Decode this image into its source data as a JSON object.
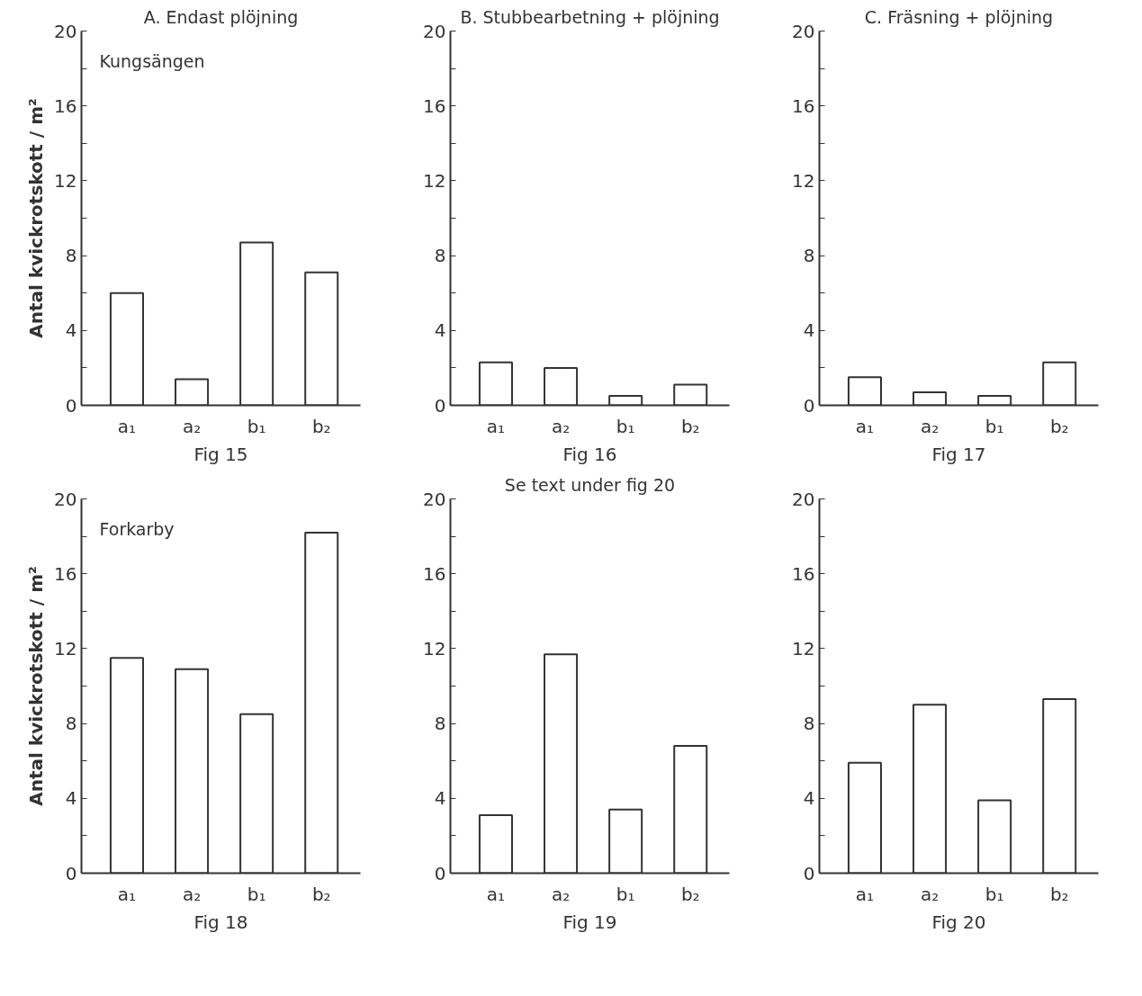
{
  "chart_data": [
    {
      "type": "bar",
      "title": "A. Endast plöjning",
      "xlabel": "Fig 15",
      "ylabel": "Antal kvickrotskott / m²",
      "annotations": [
        "Kungsängen"
      ],
      "categories": [
        "a₁",
        "a₂",
        "b₁",
        "b₂"
      ],
      "values": [
        6.0,
        1.4,
        8.7,
        7.1
      ],
      "color": "#ffffff",
      "ylim": [
        0,
        20
      ],
      "yticks": [
        0,
        {
          "value": 2,
          "label": null
        },
        4,
        {
          "value": 6,
          "label": null
        },
        8,
        {
          "value": 10,
          "label": null
        },
        12,
        {
          "value": 14,
          "label": null
        },
        16,
        {
          "value": 18,
          "label": null
        },
        20
      ],
      "grid": false
    },
    {
      "type": "bar",
      "title": "B. Stubbearbetning + plöjning",
      "xlabel": "Fig 16",
      "categories": [
        "a₁",
        "a₂",
        "b₁",
        "b₂"
      ],
      "values": [
        2.3,
        2.0,
        0.5,
        1.1
      ],
      "color": "#ffffff",
      "ylim": [
        0,
        20
      ],
      "yticks": [
        0,
        {
          "value": 2,
          "label": null
        },
        4,
        {
          "value": 6,
          "label": null
        },
        8,
        {
          "value": 10,
          "label": null
        },
        12,
        {
          "value": 14,
          "label": null
        },
        16,
        {
          "value": 18,
          "label": null
        },
        20
      ],
      "grid": false
    },
    {
      "type": "bar",
      "title": "C. Fräsning + plöjning",
      "xlabel": "Fig 17",
      "categories": [
        "a₁",
        "a₂",
        "b₁",
        "b₂"
      ],
      "values": [
        1.5,
        0.7,
        0.5,
        2.3
      ],
      "color": "#ffffff",
      "ylim": [
        0,
        20
      ],
      "yticks": [
        0,
        {
          "value": 2,
          "label": null
        },
        4,
        {
          "value": 6,
          "label": null
        },
        8,
        {
          "value": 10,
          "label": null
        },
        12,
        {
          "value": 14,
          "label": null
        },
        16,
        {
          "value": 18,
          "label": null
        },
        20
      ],
      "grid": false
    },
    {
      "type": "bar",
      "xlabel": "Fig 18",
      "ylabel": "Antal kvickrotskott / m²",
      "annotations": [
        "Forkarby"
      ],
      "categories": [
        "a₁",
        "a₂",
        "b₁",
        "b₂"
      ],
      "values": [
        11.5,
        10.9,
        8.5,
        18.2
      ],
      "color": "#ffffff",
      "ylim": [
        0,
        20
      ],
      "yticks": [
        0,
        {
          "value": 2,
          "label": null
        },
        4,
        {
          "value": 6,
          "label": null
        },
        8,
        {
          "value": 10,
          "label": null
        },
        12,
        {
          "value": 14,
          "label": null
        },
        16,
        {
          "value": 18,
          "label": null
        },
        20
      ],
      "grid": false
    },
    {
      "type": "bar",
      "title": "Se text under fig 20",
      "xlabel": "Fig 19",
      "categories": [
        "a₁",
        "a₂",
        "b₁",
        "b₂"
      ],
      "values": [
        3.1,
        11.7,
        3.4,
        6.8
      ],
      "color": "#ffffff",
      "ylim": [
        0,
        20
      ],
      "yticks": [
        0,
        {
          "value": 2,
          "label": null
        },
        4,
        {
          "value": 6,
          "label": null
        },
        8,
        {
          "value": 10,
          "label": null
        },
        12,
        {
          "value": 14,
          "label": null
        },
        16,
        {
          "value": 18,
          "label": null
        },
        20
      ],
      "grid": false
    },
    {
      "type": "bar",
      "xlabel": "Fig 20",
      "categories": [
        "a₁",
        "a₂",
        "b₁",
        "b₂"
      ],
      "values": [
        5.9,
        9.0,
        3.9,
        9.3
      ],
      "color": "#ffffff",
      "ylim": [
        0,
        20
      ],
      "yticks": [
        0,
        {
          "value": 2,
          "label": null
        },
        4,
        {
          "value": 6,
          "label": null
        },
        8,
        {
          "value": 10,
          "label": null
        },
        12,
        {
          "value": 14,
          "label": null
        },
        16,
        {
          "value": 18,
          "label": null
        },
        20
      ],
      "grid": false
    }
  ]
}
